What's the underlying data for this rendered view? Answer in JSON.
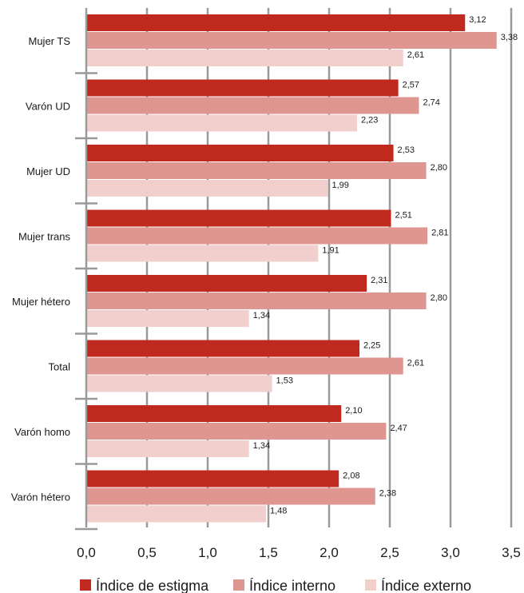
{
  "chart_data": {
    "type": "bar",
    "orientation": "horizontal",
    "categories": [
      "Mujer TS",
      "Varón UD",
      "Mujer UD",
      "Mujer trans",
      "Mujer hétero",
      "Total",
      "Varón homo",
      "Varón hétero"
    ],
    "series": [
      {
        "name": "Índice de estigma",
        "color": "#c0291e",
        "values": [
          3.12,
          2.57,
          2.53,
          2.51,
          2.31,
          2.25,
          2.1,
          2.08
        ]
      },
      {
        "name": "Índice interno",
        "color": "#e09690",
        "values": [
          3.38,
          2.74,
          2.8,
          2.81,
          2.8,
          2.61,
          2.47,
          2.38
        ]
      },
      {
        "name": "Índice externo",
        "color": "#f0cfcc",
        "values": [
          2.61,
          2.23,
          1.99,
          1.91,
          1.34,
          1.53,
          1.34,
          1.48
        ]
      }
    ],
    "value_labels": [
      [
        "3,12",
        "3,38",
        "2,61"
      ],
      [
        "2,57",
        "2,74",
        "2,23"
      ],
      [
        "2,53",
        "2,80",
        "1,99"
      ],
      [
        "2,51",
        "2,81",
        "1,91"
      ],
      [
        "2,31",
        "2,80",
        "1,34"
      ],
      [
        "2,25",
        "2,61",
        "1,53"
      ],
      [
        "2,10",
        "2,47",
        "1,34"
      ],
      [
        "2,08",
        "2,38",
        "1,48"
      ]
    ],
    "x_ticks": [
      0,
      0.5,
      1.0,
      1.5,
      2.0,
      2.5,
      3.0,
      3.5
    ],
    "x_tick_labels": [
      "0,0",
      "0,5",
      "1,0",
      "1,5",
      "2,0",
      "2,5",
      "3,0",
      "3,5"
    ],
    "xlim": [
      0,
      3.5
    ],
    "title": "",
    "xlabel": "",
    "ylabel": "",
    "grid": "vertical",
    "legend_position": "bottom"
  }
}
